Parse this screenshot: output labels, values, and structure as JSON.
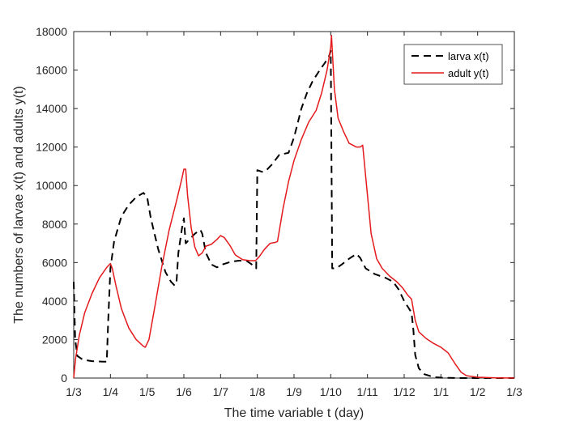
{
  "chart_data": {
    "type": "line",
    "xlabel": "The time variable t (day)",
    "ylabel": "The numbers of larvae x(t) and adults y(t)",
    "x_tick_labels": [
      "1/3",
      "1/4",
      "1/5",
      "1/6",
      "1/7",
      "1/8",
      "1/9",
      "1/10",
      "1/11",
      "1/12",
      "1/1",
      "1/2",
      "1/3"
    ],
    "ylim": [
      0,
      18000
    ],
    "y_ticks": [
      0,
      2000,
      4000,
      6000,
      8000,
      10000,
      12000,
      14000,
      16000,
      18000
    ],
    "grid": false,
    "legend_position": "top-right",
    "series": [
      {
        "name": "larva x(t)",
        "color": "#000000",
        "style": "dashed",
        "points": [
          [
            0,
            5000
          ],
          [
            0.04,
            2000
          ],
          [
            0.1,
            1150
          ],
          [
            0.25,
            950
          ],
          [
            0.5,
            880
          ],
          [
            0.8,
            850
          ],
          [
            0.9,
            850
          ],
          [
            0.94,
            3000
          ],
          [
            1,
            5700
          ],
          [
            1.1,
            7100
          ],
          [
            1.3,
            8400
          ],
          [
            1.5,
            9000
          ],
          [
            1.7,
            9400
          ],
          [
            1.9,
            9620
          ],
          [
            2.0,
            9400
          ],
          [
            2.1,
            8300
          ],
          [
            2.3,
            6700
          ],
          [
            2.5,
            5500
          ],
          [
            2.65,
            5000
          ],
          [
            2.75,
            4800
          ],
          [
            2.8,
            5000
          ],
          [
            2.85,
            6500
          ],
          [
            2.95,
            7800
          ],
          [
            3.0,
            8300
          ],
          [
            3.05,
            7000
          ],
          [
            3.15,
            7200
          ],
          [
            3.3,
            7500
          ],
          [
            3.45,
            7700
          ],
          [
            3.5,
            7500
          ],
          [
            3.6,
            6500
          ],
          [
            3.75,
            5900
          ],
          [
            3.9,
            5750
          ],
          [
            4.05,
            5900
          ],
          [
            4.3,
            6050
          ],
          [
            4.5,
            6100
          ],
          [
            4.7,
            6100
          ],
          [
            4.85,
            5900
          ],
          [
            4.97,
            5700
          ],
          [
            5.0,
            10800
          ],
          [
            5.15,
            10700
          ],
          [
            5.25,
            10800
          ],
          [
            5.4,
            11100
          ],
          [
            5.6,
            11600
          ],
          [
            5.85,
            11700
          ],
          [
            6.0,
            12500
          ],
          [
            6.2,
            14000
          ],
          [
            6.35,
            14800
          ],
          [
            6.5,
            15400
          ],
          [
            6.7,
            16000
          ],
          [
            6.85,
            16400
          ],
          [
            6.95,
            16700
          ],
          [
            7.0,
            17000
          ],
          [
            7.04,
            5700
          ],
          [
            7.15,
            5700
          ],
          [
            7.3,
            5900
          ],
          [
            7.5,
            6200
          ],
          [
            7.7,
            6450
          ],
          [
            7.8,
            6250
          ],
          [
            7.95,
            5700
          ],
          [
            8.2,
            5400
          ],
          [
            8.5,
            5200
          ],
          [
            8.7,
            5000
          ],
          [
            8.85,
            4600
          ],
          [
            8.95,
            4200
          ],
          [
            9.0,
            4000
          ],
          [
            9.1,
            3700
          ],
          [
            9.2,
            3400
          ],
          [
            9.25,
            2500
          ],
          [
            9.3,
            1200
          ],
          [
            9.4,
            500
          ],
          [
            9.55,
            200
          ],
          [
            9.8,
            50
          ],
          [
            10.0,
            20
          ],
          [
            10.5,
            0
          ],
          [
            12.0,
            0
          ]
        ]
      },
      {
        "name": "adult y(t)",
        "color": "#e41a1c",
        "style": "solid",
        "points": [
          [
            0,
            0
          ],
          [
            0.05,
            1000
          ],
          [
            0.15,
            2200
          ],
          [
            0.3,
            3400
          ],
          [
            0.5,
            4400
          ],
          [
            0.7,
            5200
          ],
          [
            0.9,
            5750
          ],
          [
            1.0,
            5950
          ],
          [
            1.05,
            5700
          ],
          [
            1.15,
            4800
          ],
          [
            1.3,
            3600
          ],
          [
            1.5,
            2600
          ],
          [
            1.7,
            2000
          ],
          [
            1.9,
            1650
          ],
          [
            1.95,
            1600
          ],
          [
            2.05,
            2000
          ],
          [
            2.2,
            3600
          ],
          [
            2.4,
            5800
          ],
          [
            2.6,
            7700
          ],
          [
            2.8,
            9200
          ],
          [
            2.95,
            10400
          ],
          [
            3.0,
            10850
          ],
          [
            3.05,
            10850
          ],
          [
            3.1,
            9500
          ],
          [
            3.2,
            7800
          ],
          [
            3.3,
            6800
          ],
          [
            3.4,
            6350
          ],
          [
            3.5,
            6500
          ],
          [
            3.6,
            6850
          ],
          [
            3.75,
            6950
          ],
          [
            3.9,
            7200
          ],
          [
            4.0,
            7400
          ],
          [
            4.1,
            7300
          ],
          [
            4.25,
            6900
          ],
          [
            4.4,
            6400
          ],
          [
            4.6,
            6150
          ],
          [
            4.8,
            6100
          ],
          [
            4.95,
            6100
          ],
          [
            5.05,
            6300
          ],
          [
            5.2,
            6700
          ],
          [
            5.35,
            7000
          ],
          [
            5.5,
            7050
          ],
          [
            5.55,
            7100
          ],
          [
            5.7,
            8800
          ],
          [
            5.85,
            10200
          ],
          [
            6.0,
            11300
          ],
          [
            6.2,
            12400
          ],
          [
            6.4,
            13300
          ],
          [
            6.6,
            13900
          ],
          [
            6.75,
            14800
          ],
          [
            6.9,
            16000
          ],
          [
            7.0,
            17200
          ],
          [
            7.02,
            17800
          ],
          [
            7.1,
            15000
          ],
          [
            7.2,
            13500
          ],
          [
            7.35,
            12800
          ],
          [
            7.5,
            12200
          ],
          [
            7.7,
            12000
          ],
          [
            7.8,
            12000
          ],
          [
            7.87,
            12100
          ],
          [
            7.95,
            10500
          ],
          [
            8.1,
            7500
          ],
          [
            8.25,
            6200
          ],
          [
            8.4,
            5700
          ],
          [
            8.6,
            5300
          ],
          [
            8.8,
            5000
          ],
          [
            8.95,
            4700
          ],
          [
            9.1,
            4300
          ],
          [
            9.2,
            4100
          ],
          [
            9.3,
            3000
          ],
          [
            9.4,
            2400
          ],
          [
            9.6,
            2050
          ],
          [
            9.8,
            1800
          ],
          [
            10.0,
            1600
          ],
          [
            10.1,
            1450
          ],
          [
            10.2,
            1300
          ],
          [
            10.4,
            700
          ],
          [
            10.55,
            300
          ],
          [
            10.7,
            120
          ],
          [
            11.0,
            40
          ],
          [
            11.5,
            10
          ],
          [
            12.0,
            0
          ]
        ]
      }
    ]
  }
}
